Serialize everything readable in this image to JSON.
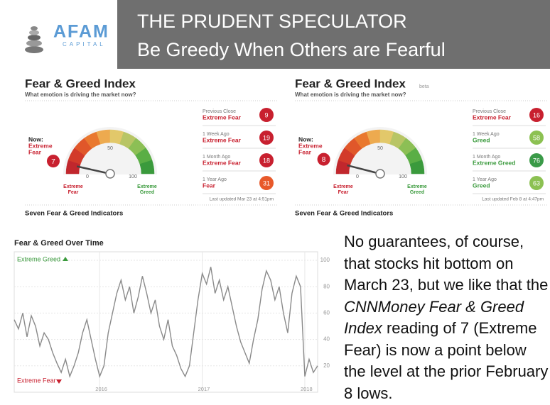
{
  "header": {
    "brand": "AFAM",
    "brand_sub": "CAPITAL",
    "title": "THE PRUDENT SPECULATOR",
    "subtitle": "Be Greedy When Others are Fearful"
  },
  "gauges": [
    {
      "title": "Fear & Greed Index",
      "subtitle": "What emotion is driving the market now?",
      "now_label": [
        "Now:",
        "Extreme",
        "Fear"
      ],
      "value": 7,
      "lim": [
        0,
        100
      ],
      "ticks": [
        0,
        50,
        100
      ],
      "min_label": [
        "Extreme",
        "Fear"
      ],
      "max_label": [
        "Extreme",
        "Greed"
      ],
      "history": [
        {
          "label": "Previous Close",
          "sentiment": "Extreme Fear",
          "value": 9,
          "color": "#c8202f"
        },
        {
          "label": "1 Week Ago",
          "sentiment": "Extreme Fear",
          "value": 19,
          "color": "#c8202f"
        },
        {
          "label": "1 Month Ago",
          "sentiment": "Extreme Fear",
          "value": 18,
          "color": "#c8202f"
        },
        {
          "label": "1 Year Ago",
          "sentiment": "Fear",
          "value": 31,
          "color": "#e8592a"
        }
      ],
      "updated": "Last updated Mar 23 at 4:51pm",
      "footer": "Seven Fear & Greed Indicators"
    },
    {
      "title": "Fear & Greed Index",
      "badge": "beta",
      "subtitle": "What emotion is driving the market now?",
      "now_label": [
        "Now:",
        "Extreme",
        "Fear"
      ],
      "value": 8,
      "lim": [
        0,
        100
      ],
      "ticks": [
        0,
        50,
        100
      ],
      "min_label": [
        "Extreme",
        "Fear"
      ],
      "max_label": [
        "Extreme",
        "Greed"
      ],
      "history": [
        {
          "label": "Previous Close",
          "sentiment": "Extreme Fear",
          "value": 16,
          "color": "#c8202f"
        },
        {
          "label": "1 Week Ago",
          "sentiment": "Greed",
          "value": 58,
          "color": "#8cc152"
        },
        {
          "label": "1 Month Ago",
          "sentiment": "Extreme Greed",
          "value": 76,
          "color": "#3a9a48"
        },
        {
          "label": "1 Year Ago",
          "sentiment": "Greed",
          "value": 63,
          "color": "#8cc152"
        }
      ],
      "updated": "Last updated Feb 8 at 4:47pm",
      "footer": "Seven Fear & Greed Indicators"
    }
  ],
  "chart_data": {
    "type": "line",
    "title": "Fear & Greed Over Time",
    "categories": [
      null,
      null,
      null,
      null,
      null,
      null,
      null,
      null,
      null,
      null,
      null,
      null,
      null,
      null,
      null,
      null,
      null,
      null,
      null,
      null,
      "2016",
      null,
      null,
      null,
      null,
      null,
      null,
      null,
      null,
      null,
      null,
      null,
      null,
      null,
      null,
      null,
      null,
      null,
      null,
      null,
      null,
      null,
      null,
      null,
      "2017",
      null,
      null,
      null,
      null,
      null,
      null,
      null,
      null,
      null,
      null,
      null,
      null,
      null,
      null,
      null,
      null,
      null,
      null,
      null,
      null,
      null,
      null,
      null,
      "2018",
      null,
      null,
      null
    ],
    "values": [
      55,
      48,
      60,
      42,
      58,
      50,
      35,
      45,
      40,
      30,
      22,
      15,
      25,
      12,
      20,
      30,
      45,
      55,
      40,
      25,
      12,
      20,
      45,
      60,
      75,
      85,
      70,
      80,
      60,
      72,
      88,
      75,
      60,
      70,
      50,
      40,
      55,
      35,
      28,
      18,
      12,
      20,
      45,
      70,
      90,
      82,
      95,
      75,
      85,
      70,
      80,
      65,
      50,
      38,
      30,
      22,
      40,
      55,
      78,
      92,
      85,
      70,
      80,
      60,
      45,
      75,
      88,
      80,
      12,
      25,
      15,
      20
    ],
    "color": "#8a8a8a",
    "ylim": [
      0,
      100
    ],
    "yticks": [
      20,
      40,
      60,
      80,
      100
    ],
    "grid": true,
    "top_label": "Extreme Greed",
    "bottom_label": "Extreme Fear"
  },
  "text": {
    "part1": "No guarantees, of course, that stocks hit bottom on March 23, but we like that the ",
    "italic": "CNNMoney Fear & Greed Index",
    "part2": " reading of 7 (Extreme Fear) is now a point below the level at the prior February 8 lows."
  }
}
